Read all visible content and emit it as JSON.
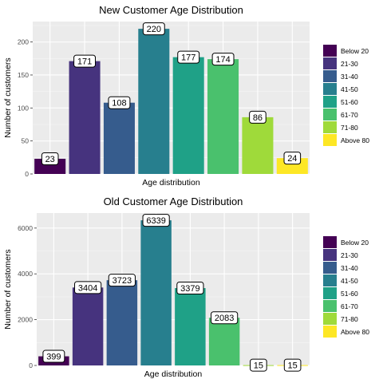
{
  "chart_data": [
    {
      "type": "bar",
      "title": "New Customer Age Distribution",
      "xlabel": "Age distribution",
      "ylabel": "Number of customers",
      "categories": [
        "Below 20",
        "21-30",
        "31-40",
        "41-50",
        "51-60",
        "61-70",
        "71-80",
        "Above 80"
      ],
      "values": [
        23,
        171,
        108,
        220,
        177,
        174,
        86,
        24
      ],
      "yticks": [
        0,
        50,
        100,
        150,
        200
      ],
      "ylim": [
        0,
        231
      ],
      "grid": true,
      "legend_position": "right",
      "colors": [
        "#440154",
        "#46337E",
        "#365C8D",
        "#277F8E",
        "#1FA187",
        "#4AC16D",
        "#9FDA3A",
        "#FDE725"
      ]
    },
    {
      "type": "bar",
      "title": "Old Customer Age Distribution",
      "xlabel": "Age distribution",
      "ylabel": "Number of customers",
      "categories": [
        "Below 20",
        "21-30",
        "31-40",
        "41-50",
        "51-60",
        "61-70",
        "71-80",
        "Above 80"
      ],
      "values": [
        399,
        3404,
        3723,
        6339,
        3379,
        2083,
        15,
        15
      ],
      "yticks": [
        0,
        2000,
        4000,
        6000
      ],
      "ylim": [
        0,
        6656
      ],
      "grid": true,
      "legend_position": "right",
      "colors": [
        "#440154",
        "#46337E",
        "#365C8D",
        "#277F8E",
        "#1FA187",
        "#4AC16D",
        "#9FDA3A",
        "#FDE725"
      ]
    }
  ]
}
